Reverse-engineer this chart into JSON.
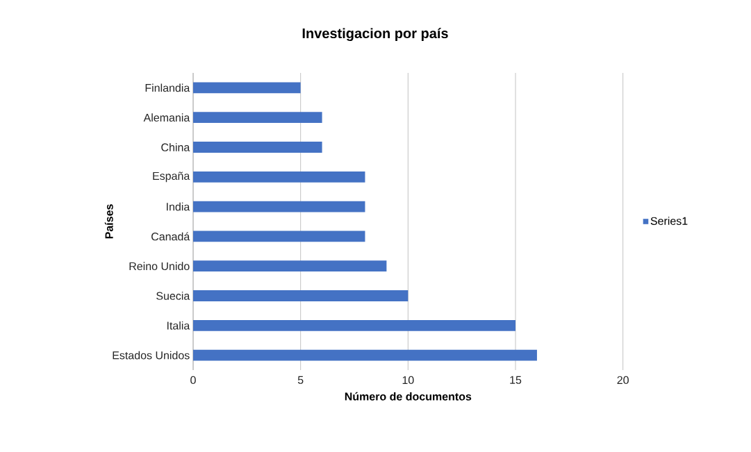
{
  "chart_data": {
    "type": "bar",
    "orientation": "horizontal",
    "title": "Investigacion por país",
    "xlabel": "Número de documentos",
    "ylabel": "Países",
    "categories": [
      "Finlandia",
      "Alemania",
      "China",
      "España",
      "India",
      "Canadá",
      "Reino Unido",
      "Suecia",
      "Italia",
      "Estados Unidos"
    ],
    "series": [
      {
        "name": "Series1",
        "color": "#4472c4",
        "values": [
          5,
          6,
          6,
          8,
          8,
          8,
          9,
          10,
          15,
          16
        ]
      }
    ],
    "xlim": [
      0,
      20
    ],
    "xticks": [
      0,
      5,
      10,
      15,
      20
    ],
    "grid": "x",
    "legend": "right"
  }
}
